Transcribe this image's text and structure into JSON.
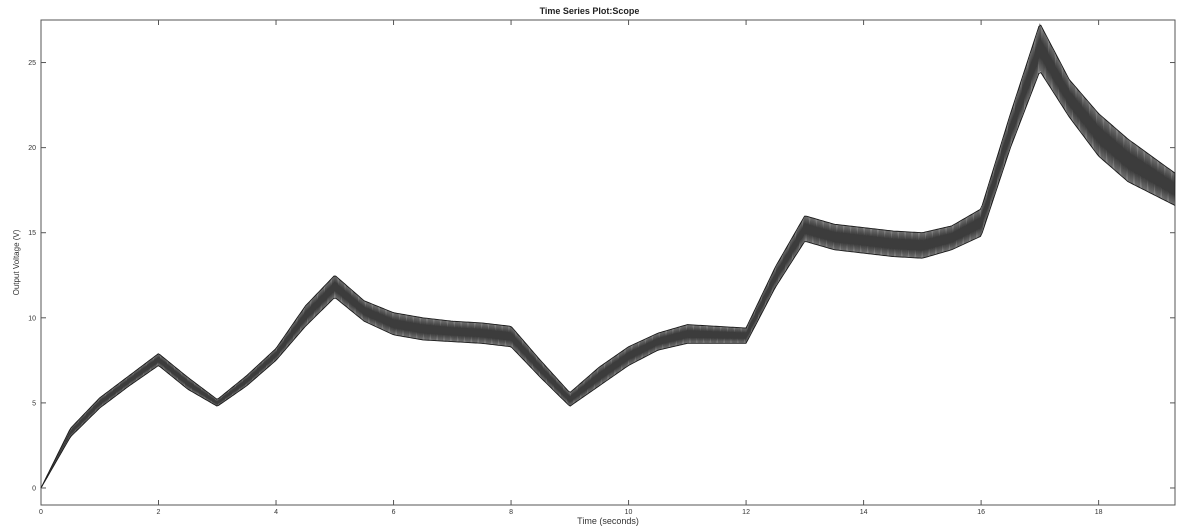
{
  "chart_data": {
    "type": "line",
    "title": "Time Series Plot:Scope",
    "xlabel": "Time (seconds)",
    "ylabel": "Output Voltage (V)",
    "xlim": [
      0,
      19.3
    ],
    "ylim": [
      -1,
      27.5
    ],
    "x_ticks": [
      0,
      2,
      4,
      6,
      8,
      10,
      12,
      14,
      16,
      18
    ],
    "y_ticks": [
      0,
      5,
      10,
      15,
      20,
      25
    ],
    "x_tick_labels": [
      "0",
      "2",
      "4",
      "6",
      "8",
      "10",
      "12",
      "14",
      "16",
      "18"
    ],
    "y_tick_labels": [
      "0",
      "5",
      "10",
      "15",
      "20",
      "25"
    ],
    "grid": false,
    "legend": "none",
    "line_color": "#1a1a1a",
    "series": [
      {
        "envelope_upper": {
          "x": [
            0,
            0.5,
            1,
            1.5,
            2,
            2.5,
            3,
            3.5,
            4,
            4.5,
            5,
            5.5,
            6,
            6.5,
            7,
            7.5,
            8,
            8.5,
            9,
            9.5,
            10,
            10.5,
            11,
            11.5,
            12,
            12.5,
            13,
            13.5,
            14,
            14.5,
            15,
            15.5,
            16,
            16.5,
            17,
            17.5,
            18,
            18.5,
            19.3
          ],
          "y": [
            0,
            3.5,
            5.3,
            6.6,
            7.9,
            6.5,
            5.2,
            6.6,
            8.2,
            10.7,
            12.5,
            11,
            10.3,
            10,
            9.8,
            9.7,
            9.5,
            7.5,
            5.6,
            7.1,
            8.3,
            9.1,
            9.6,
            9.5,
            9.4,
            13,
            16,
            15.5,
            15.3,
            15.1,
            15,
            15.4,
            16.4,
            22,
            27.3,
            24,
            22,
            20.5,
            18.5
          ]
        },
        "envelope_lower": {
          "x": [
            0,
            0.5,
            1,
            1.5,
            2,
            2.5,
            3,
            3.5,
            4,
            4.5,
            5,
            5.5,
            6,
            6.5,
            7,
            7.5,
            8,
            8.5,
            9,
            9.5,
            10,
            10.5,
            11,
            11.5,
            12,
            12.5,
            13,
            13.5,
            14,
            14.5,
            15,
            15.5,
            16,
            16.5,
            17,
            17.5,
            18,
            18.5,
            19.3
          ],
          "y": [
            0,
            3,
            4.7,
            6,
            7.2,
            5.8,
            4.8,
            6,
            7.5,
            9.5,
            11.2,
            9.8,
            9,
            8.7,
            8.6,
            8.5,
            8.3,
            6.5,
            4.8,
            6,
            7.2,
            8.1,
            8.5,
            8.5,
            8.5,
            11.8,
            14.5,
            14,
            13.8,
            13.6,
            13.5,
            14,
            14.8,
            20,
            24.5,
            21.8,
            19.5,
            18,
            16.6
          ]
        }
      }
    ]
  }
}
